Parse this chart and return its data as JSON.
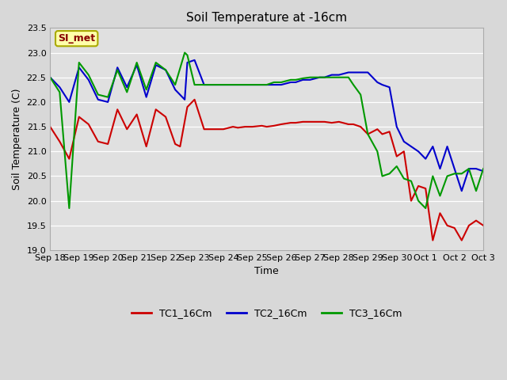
{
  "title": "Soil Temperature at -16cm",
  "xlabel": "Time",
  "ylabel": "Soil Temperature (C)",
  "ylim": [
    19.0,
    23.5
  ],
  "yticks": [
    19.0,
    19.5,
    20.0,
    20.5,
    21.0,
    21.5,
    22.0,
    22.5,
    23.0,
    23.5
  ],
  "fig_bg_color": "#d8d8d8",
  "plot_bg_color": "#e0e0e0",
  "annotation_text": "SI_met",
  "annotation_bg": "#ffffaa",
  "annotation_border": "#aaaa00",
  "annotation_text_color": "#880000",
  "tc1_color": "#cc0000",
  "tc2_color": "#0000cc",
  "tc3_color": "#009900",
  "legend_labels": [
    "TC1_16Cm",
    "TC2_16Cm",
    "TC3_16Cm"
  ],
  "x_tick_labels": [
    "Sep 18",
    "Sep 19",
    "Sep 20",
    "Sep 21",
    "Sep 22",
    "Sep 23",
    "Sep 24",
    "Sep 25",
    "Sep 26",
    "Sep 27",
    "Sep 28",
    "Sep 29",
    "Sep 30",
    "Oct 1",
    "Oct 2",
    "Oct 3"
  ],
  "tc1_x": [
    0,
    0.33,
    0.66,
    1.0,
    1.33,
    1.66,
    2.0,
    2.33,
    2.66,
    3.0,
    3.33,
    3.66,
    4.0,
    4.33,
    4.5,
    4.75,
    5.0,
    5.33,
    5.5,
    5.66,
    6.0,
    6.33,
    6.5,
    6.75,
    7.0,
    7.33,
    7.5,
    7.75,
    8.0,
    8.33,
    8.5,
    8.75,
    9.0,
    9.33,
    9.5,
    9.75,
    10.0,
    10.33,
    10.5,
    10.75,
    11.0,
    11.33,
    11.5,
    11.75,
    12.0,
    12.25,
    12.5,
    12.75,
    13.0,
    13.25,
    13.5,
    13.75,
    14.0,
    14.25,
    14.5,
    14.75,
    15.0
  ],
  "tc1_y": [
    21.5,
    21.2,
    20.85,
    21.7,
    21.55,
    21.2,
    21.15,
    21.85,
    21.45,
    21.75,
    21.1,
    21.85,
    21.7,
    21.15,
    21.1,
    21.9,
    22.05,
    21.45,
    21.45,
    21.45,
    21.45,
    21.5,
    21.48,
    21.5,
    21.5,
    21.52,
    21.5,
    21.52,
    21.55,
    21.58,
    21.58,
    21.6,
    21.6,
    21.6,
    21.6,
    21.58,
    21.6,
    21.55,
    21.55,
    21.5,
    21.35,
    21.45,
    21.35,
    21.4,
    20.9,
    21.0,
    20.0,
    20.3,
    20.25,
    19.2,
    19.75,
    19.5,
    19.45,
    19.2,
    19.5,
    19.6,
    19.5
  ],
  "tc2_x": [
    0,
    0.33,
    0.66,
    1.0,
    1.33,
    1.66,
    2.0,
    2.33,
    2.66,
    3.0,
    3.33,
    3.66,
    4.0,
    4.33,
    4.66,
    4.75,
    5.0,
    5.33,
    5.5,
    5.75,
    6.0,
    6.33,
    6.5,
    6.75,
    7.0,
    7.33,
    7.5,
    7.75,
    8.0,
    8.33,
    8.5,
    8.75,
    9.0,
    9.33,
    9.5,
    9.75,
    10.0,
    10.33,
    10.5,
    10.75,
    11.0,
    11.33,
    11.5,
    11.75,
    12.0,
    12.25,
    12.5,
    12.75,
    13.0,
    13.25,
    13.5,
    13.75,
    14.0,
    14.25,
    14.5,
    14.75,
    15.0
  ],
  "tc2_y": [
    22.5,
    22.3,
    22.0,
    22.7,
    22.45,
    22.05,
    22.0,
    22.7,
    22.3,
    22.75,
    22.1,
    22.75,
    22.65,
    22.25,
    22.05,
    22.8,
    22.85,
    22.35,
    22.35,
    22.35,
    22.35,
    22.35,
    22.35,
    22.35,
    22.35,
    22.35,
    22.35,
    22.35,
    22.35,
    22.4,
    22.4,
    22.45,
    22.45,
    22.5,
    22.5,
    22.55,
    22.55,
    22.6,
    22.6,
    22.6,
    22.6,
    22.4,
    22.35,
    22.3,
    21.5,
    21.2,
    21.1,
    21.0,
    20.85,
    21.1,
    20.65,
    21.1,
    20.65,
    20.2,
    20.65,
    20.65,
    20.6
  ],
  "tc3_x": [
    0,
    0.33,
    0.66,
    1.0,
    1.33,
    1.66,
    2.0,
    2.33,
    2.66,
    3.0,
    3.33,
    3.66,
    4.0,
    4.33,
    4.66,
    4.75,
    5.0,
    5.33,
    5.5,
    5.75,
    6.0,
    6.33,
    6.5,
    6.75,
    7.0,
    7.33,
    7.5,
    7.75,
    8.0,
    8.33,
    8.5,
    8.75,
    9.0,
    9.33,
    9.5,
    9.75,
    10.0,
    10.33,
    10.5,
    10.75,
    11.0,
    11.33,
    11.5,
    11.75,
    12.0,
    12.25,
    12.5,
    12.75,
    13.0,
    13.25,
    13.5,
    13.75,
    14.0,
    14.25,
    14.5,
    14.75,
    15.0
  ],
  "tc3_y": [
    22.5,
    22.2,
    19.85,
    22.8,
    22.55,
    22.15,
    22.1,
    22.65,
    22.2,
    22.8,
    22.25,
    22.8,
    22.65,
    22.35,
    23.0,
    22.95,
    22.35,
    22.35,
    22.35,
    22.35,
    22.35,
    22.35,
    22.35,
    22.35,
    22.35,
    22.35,
    22.35,
    22.4,
    22.4,
    22.45,
    22.45,
    22.48,
    22.5,
    22.5,
    22.5,
    22.5,
    22.5,
    22.5,
    22.35,
    22.15,
    21.35,
    21.0,
    20.5,
    20.55,
    20.7,
    20.45,
    20.4,
    20.0,
    19.85,
    20.5,
    20.1,
    20.5,
    20.55,
    20.55,
    20.65,
    20.2,
    20.65
  ]
}
